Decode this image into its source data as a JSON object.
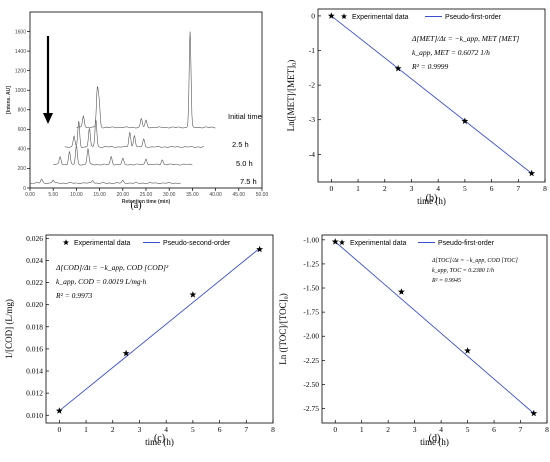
{
  "chart_data": [
    {
      "panel": "(a)",
      "type": "line",
      "xlabel": "Retention time (min)",
      "ylabel": "[Intens. AU]",
      "xlim": [
        0,
        50
      ],
      "ylim": [
        0,
        1800
      ],
      "xticks": [
        "0.00",
        "5.00",
        "10.00",
        "15.00",
        "20.00",
        "25.00",
        "30.00",
        "35.00",
        "40.00",
        "45.00",
        "50.00"
      ],
      "yticks": [
        "0",
        "200",
        "400",
        "600",
        "800",
        "1000",
        "1200",
        "1400",
        "1600"
      ],
      "series": [
        {
          "name": "Initial time",
          "x_start": 10,
          "x_end": 40,
          "baseline": 620
        },
        {
          "name": "2.5 h",
          "x_start": 7.5,
          "x_end": 37.5,
          "baseline": 420
        },
        {
          "name": "5.0 h",
          "x_start": 5,
          "x_end": 35,
          "baseline": 240
        },
        {
          "name": "7.5 h",
          "x_start": 0,
          "x_end": 32.5,
          "baseline": 50
        }
      ],
      "peaks": [
        {
          "trace": 0,
          "x": 11.5,
          "h": 120
        },
        {
          "trace": 0,
          "x": 14.5,
          "h": 380
        },
        {
          "trace": 0,
          "x": 14.9,
          "h": 250
        },
        {
          "trace": 0,
          "x": 24.0,
          "h": 90
        },
        {
          "trace": 0,
          "x": 25.0,
          "h": 70
        },
        {
          "trace": 0,
          "x": 34.5,
          "h": 980
        },
        {
          "trace": 1,
          "x": 9.5,
          "h": 110
        },
        {
          "trace": 1,
          "x": 10.5,
          "h": 260
        },
        {
          "trace": 1,
          "x": 12.8,
          "h": 190
        },
        {
          "trace": 1,
          "x": 14.2,
          "h": 280
        },
        {
          "trace": 1,
          "x": 21.5,
          "h": 150
        },
        {
          "trace": 1,
          "x": 22.5,
          "h": 120
        },
        {
          "trace": 1,
          "x": 24.5,
          "h": 80
        },
        {
          "trace": 2,
          "x": 6.5,
          "h": 80
        },
        {
          "trace": 2,
          "x": 8.5,
          "h": 130
        },
        {
          "trace": 2,
          "x": 10.0,
          "h": 190
        },
        {
          "trace": 2,
          "x": 12.5,
          "h": 160
        },
        {
          "trace": 2,
          "x": 17.5,
          "h": 80
        },
        {
          "trace": 2,
          "x": 20.0,
          "h": 60
        },
        {
          "trace": 2,
          "x": 25.0,
          "h": 60
        },
        {
          "trace": 2,
          "x": 28.5,
          "h": 50
        },
        {
          "trace": 3,
          "x": 2.5,
          "h": 40
        },
        {
          "trace": 3,
          "x": 5.0,
          "h": 30
        },
        {
          "trace": 3,
          "x": 13.5,
          "h": 30
        },
        {
          "trace": 3,
          "x": 20.0,
          "h": 25
        }
      ]
    },
    {
      "panel": "(b)",
      "type": "scatter",
      "xlabel": "time (h)",
      "ylabel": "Ln([MET]/[MET]₀)",
      "xlim": [
        -0.5,
        8
      ],
      "ylim": [
        -4.8,
        0.2
      ],
      "xticks": [
        0,
        1,
        2,
        3,
        4,
        5,
        6,
        7,
        8
      ],
      "yticks": [
        0,
        -1,
        -2,
        -3,
        -4
      ],
      "series": [
        {
          "name": "Experimental data",
          "x": [
            0,
            2.5,
            5.0,
            7.5
          ],
          "y": [
            0.0,
            -1.52,
            -3.04,
            -4.55
          ]
        },
        {
          "name": "Pseudo-first-order",
          "line": [
            [
              0,
              0.0
            ],
            [
              7.5,
              -4.55
            ]
          ]
        }
      ],
      "annotations": [
        "Δ[MET]/Δt = −k_app, MET [MET]",
        "k_app, MET = 0.6072 1/h",
        "R² = 0.9999"
      ]
    },
    {
      "panel": "(c)",
      "type": "scatter",
      "xlabel": "time (h)",
      "ylabel": "1/[COD] (L/mg)",
      "xlim": [
        -0.5,
        8
      ],
      "ylim": [
        0.0093,
        0.0263
      ],
      "xticks": [
        0,
        1,
        2,
        3,
        4,
        5,
        6,
        7,
        8
      ],
      "yticks": [
        "0.010",
        "0.012",
        "0.014",
        "0.016",
        "0.018",
        "0.020",
        "0.022",
        "0.024",
        "0.026"
      ],
      "series": [
        {
          "name": "Experimental data",
          "x": [
            0,
            2.5,
            5.0,
            7.5
          ],
          "y": [
            0.0104,
            0.0156,
            0.0209,
            0.025
          ]
        },
        {
          "name": "Pseudo-second-order",
          "line": [
            [
              0,
              0.0104
            ],
            [
              7.5,
              0.0251
            ]
          ]
        }
      ],
      "annotations": [
        "Δ[COD]/Δt = −k_app, COD [COD]²",
        "k_app, COD = 0.0019 L/mg·h",
        "R² = 0.9973"
      ]
    },
    {
      "panel": "(d)",
      "type": "scatter",
      "xlabel": "time (h)",
      "ylabel": "Ln ([TOC]/[TOC]₀)",
      "xlim": [
        -0.5,
        8
      ],
      "ylim": [
        -2.9,
        -0.95
      ],
      "xticks": [
        0,
        1,
        2,
        3,
        4,
        5,
        6,
        7,
        8
      ],
      "yticks": [
        "-1.00",
        "-1.25",
        "-1.50",
        "-1.75",
        "-2.00",
        "-2.25",
        "-2.50",
        "-2.75"
      ],
      "series": [
        {
          "name": "Experimental data",
          "x": [
            0,
            2.5,
            5.0,
            7.5
          ],
          "y": [
            -1.02,
            -1.54,
            -2.15,
            -2.8
          ]
        },
        {
          "name": "Pseudo-first-order",
          "line": [
            [
              0,
              -1.02
            ],
            [
              7.5,
              -2.8
            ]
          ]
        }
      ],
      "annotations": [
        "Δ[TOC]/Δt = −k_app, COD [TOC]",
        "k_app, TOC = 0.2380 1/h",
        "R² = 0.9945"
      ]
    }
  ]
}
